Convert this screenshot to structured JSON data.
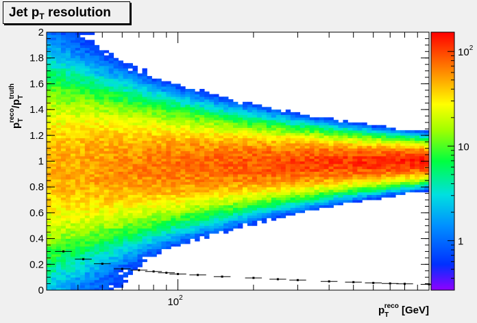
{
  "title": {
    "main": "Jet p",
    "sub": "T",
    "rest": " resolution"
  },
  "x_axis": {
    "base": "p",
    "sub": "T",
    "sup": "reco",
    "unit": " [GeV]"
  },
  "y_axis": {
    "base1": "p",
    "sub1": "T",
    "sup1": "reco",
    "slash": "/",
    "base2": "p",
    "sub2": "T",
    "sup2": "truth"
  },
  "colors": {
    "background": "#f0f0f0",
    "frame": "#ffffff",
    "profile": "#000000"
  },
  "chart_data": {
    "type": "heatmap",
    "x_scale": "log",
    "xlim": [
      30,
      1000
    ],
    "ylim": [
      0,
      2
    ],
    "y_ticks": [
      "0",
      "0.2",
      "0.4",
      "0.6",
      "0.8",
      "1",
      "1.2",
      "1.4",
      "1.6",
      "1.8",
      "2"
    ],
    "x_tick_labels": [
      {
        "base": "10",
        "exp": "2",
        "value": 100
      }
    ],
    "z_scale": "log",
    "zlim": [
      0.3,
      160
    ],
    "z_tick_labels": [
      {
        "base": "1",
        "exp": "",
        "value": 1
      },
      {
        "base": "10",
        "exp": "",
        "value": 10
      },
      {
        "base": "10",
        "exp": "2",
        "value": 100
      }
    ],
    "density_model": {
      "description_of_cells": "counts per (pT, ratio) bin",
      "peak_ratio_low_pt": 0.95,
      "peak_ratio_high_pt": 1.0,
      "width_low_pt": 0.35,
      "width_high_pt": 0.07,
      "peak_count_low_pt": 45,
      "peak_count_high_pt": 130
    },
    "profile_series": {
      "name": "",
      "x": [
        35,
        42,
        50,
        60,
        70,
        80,
        90,
        100,
        120,
        150,
        200,
        250,
        300,
        400,
        500,
        600,
        700,
        800,
        1000
      ],
      "y": [
        0.3,
        0.24,
        0.205,
        0.165,
        0.155,
        0.145,
        0.135,
        0.125,
        0.118,
        0.105,
        0.095,
        0.085,
        0.078,
        0.068,
        0.062,
        0.056,
        0.052,
        0.049,
        0.045
      ]
    }
  }
}
